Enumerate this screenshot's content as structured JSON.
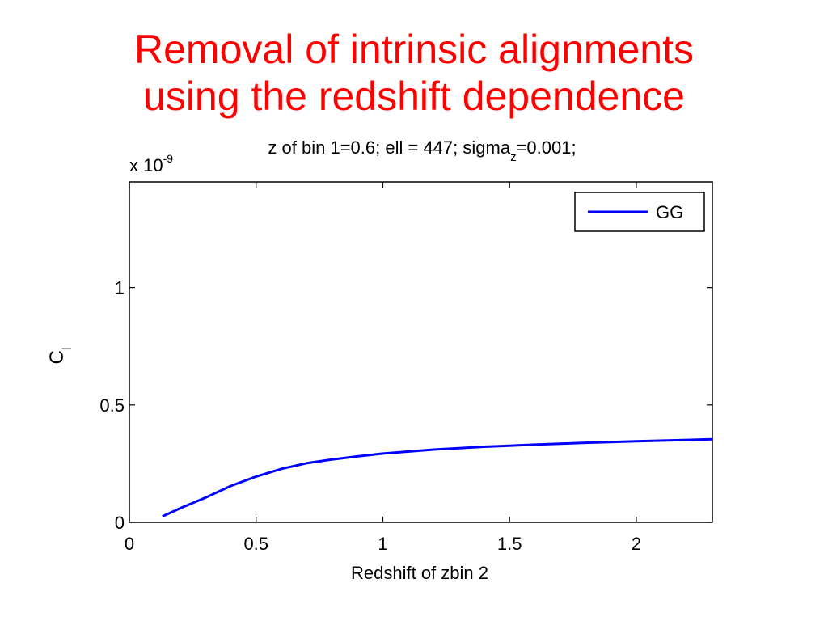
{
  "slide": {
    "title_line1": "Removal of intrinsic alignments",
    "title_line2": "using the redshift dependence",
    "title_color": "#ff0000"
  },
  "chart_data": {
    "type": "line",
    "title_main": "z of bin 1=0.6; ell = 447; sigma",
    "title_sub": "z",
    "title_tail": "=0.001;",
    "xlabel": "Redshift of zbin 2",
    "ylabel_main": "C",
    "ylabel_sub": "l",
    "y_exponent_prefix": "x 10",
    "y_exponent_power": "-9",
    "xlim": [
      0,
      2.3
    ],
    "ylim": [
      0,
      1.45
    ],
    "x_ticks": [
      0,
      0.5,
      1,
      1.5,
      2
    ],
    "x_tick_labels": [
      "0",
      "0.5",
      "1",
      "1.5",
      "2"
    ],
    "y_ticks": [
      0,
      0.5,
      1
    ],
    "y_tick_labels": [
      "0",
      "0.5",
      "1"
    ],
    "grid": false,
    "legend_position": "top-right",
    "series": [
      {
        "name": "GG",
        "color": "#0000ff",
        "x": [
          0.13,
          0.2,
          0.3,
          0.4,
          0.5,
          0.6,
          0.7,
          0.8,
          0.9,
          1.0,
          1.2,
          1.4,
          1.6,
          1.8,
          2.0,
          2.2,
          2.3
        ],
        "y": [
          0.025,
          0.06,
          0.105,
          0.155,
          0.195,
          0.228,
          0.252,
          0.268,
          0.281,
          0.293,
          0.31,
          0.322,
          0.331,
          0.339,
          0.345,
          0.351,
          0.354
        ]
      }
    ]
  }
}
